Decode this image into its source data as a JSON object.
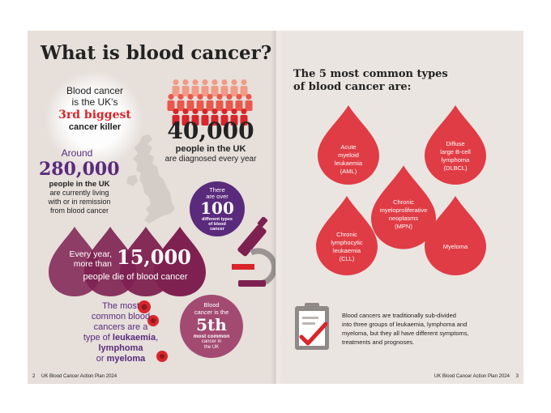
{
  "left_page": {
    "title": "What is blood cancer?",
    "killer": {
      "line1": "Blood cancer",
      "line2": "is the UK's",
      "highlight": "3rd biggest",
      "line3": "cancer killer"
    },
    "forty": {
      "number": "40,000",
      "bold": "people in the UK",
      "text": "are diagnosed every year"
    },
    "around": {
      "label": "Around",
      "number": "280,000",
      "bold": "people in the UK",
      "line1": "are currently living",
      "line2": "with or in remission",
      "line3": "from blood cancer"
    },
    "types_circle": {
      "line1": "There",
      "line2": "are over",
      "number": "100",
      "line3": "different types",
      "line4": "of blood",
      "line5": "cancer"
    },
    "die": {
      "line1": "Every year,",
      "line2": "more than",
      "number": "15,000",
      "line3": "people die of blood cancer"
    },
    "common": {
      "line1": "The most",
      "line2": "common blood",
      "line3": "cancers are a",
      "line4a": "type of ",
      "leukaemia": "leukaemia",
      "comma": ",",
      "lymphoma": "lymphoma",
      "or": "or ",
      "myeloma": "myeloma"
    },
    "fifth_circle": {
      "line1": "Blood",
      "line2": "cancer is the",
      "number": "5th",
      "bold": "most common",
      "line3": "cancer in",
      "line4": "the UK"
    },
    "footer": {
      "page": "2",
      "text": "UK Blood Cancer Action Plan 2024"
    }
  },
  "right_page": {
    "heading_line1": "The 5 most common types",
    "heading_line2": "of blood cancer are:",
    "types": [
      {
        "lines": [
          "Acute",
          "myeloid",
          "leukaemia",
          "(AML)"
        ]
      },
      {
        "lines": [
          "Diffuse",
          "large B-cell",
          "lymphoma",
          "(DLBCL)"
        ]
      },
      {
        "lines": [
          "Chronic",
          "myeloproliferative",
          "neoplasms",
          "(MPN)"
        ]
      },
      {
        "lines": [
          "Chronic",
          "lymphocytic",
          "leukaemia",
          "(CLL)"
        ]
      },
      {
        "lines": [
          "Myeloma"
        ]
      }
    ],
    "note_lines": [
      "Blood cancers are traditionally sub-divided",
      "into three groups of leukaemia, lymphoma and",
      "myeloma, but they all have different symptoms,",
      "treatments and prognoses."
    ],
    "footer": {
      "text": "UK Blood Cancer Action Plan 2024",
      "page": "3"
    }
  },
  "colors": {
    "page_bg": "#e6dfda",
    "purple": "#5a2a7c",
    "red": "#d9252b",
    "wine": "#7e2151",
    "drop_red": "#e03c45",
    "mauve": "#a24a72"
  },
  "icons": [
    "uk-map-icon",
    "people-crowd-icon",
    "microscope-icon",
    "blood-cell-icon",
    "clipboard-check-icon",
    "blood-drop-icon"
  ]
}
